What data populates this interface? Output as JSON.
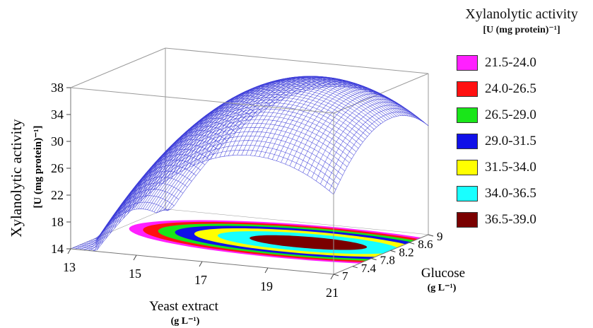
{
  "chart_data": {
    "type": "surface3d",
    "zlabel": "Xylanolytic activity",
    "zlabel_unit": "[U (mg protein)⁻¹]",
    "xlabel": "Yeast extract",
    "xlabel_unit": "(g L⁻¹)",
    "ylabel": "Glucose",
    "ylabel_unit": "(g L⁻¹)",
    "z_ticks": [
      "14",
      "18",
      "22",
      "26",
      "30",
      "34",
      "38"
    ],
    "x_ticks": [
      "13",
      "15",
      "17",
      "19",
      "21"
    ],
    "y_ticks": [
      "7",
      "7.4",
      "7.8",
      "8.2",
      "8.6",
      "9"
    ],
    "x_range": [
      13,
      21
    ],
    "y_range": [
      7,
      9
    ],
    "z_range": [
      14,
      38
    ],
    "surface": {
      "peak_x": 18.5,
      "peak_y": 8.2,
      "peak_z": 38.3,
      "min_z": 16.0,
      "mesh_color": "#3a3ad8"
    },
    "contour_levels": [
      {
        "label": "21.5-24.0",
        "color": "#ff20ff"
      },
      {
        "label": "24.0-26.5",
        "color": "#ff1010"
      },
      {
        "label": "26.5-29.0",
        "color": "#19e619"
      },
      {
        "label": "29.0-31.5",
        "color": "#1010e8"
      },
      {
        "label": "31.5-34.0",
        "color": "#ffff00"
      },
      {
        "label": "34.0-36.5",
        "color": "#19ffff"
      },
      {
        "label": "36.5-39.0",
        "color": "#7a0000"
      }
    ]
  },
  "legend": {
    "title": "Xylanolytic activity",
    "subtitle": "[U (mg protein)⁻¹]"
  }
}
